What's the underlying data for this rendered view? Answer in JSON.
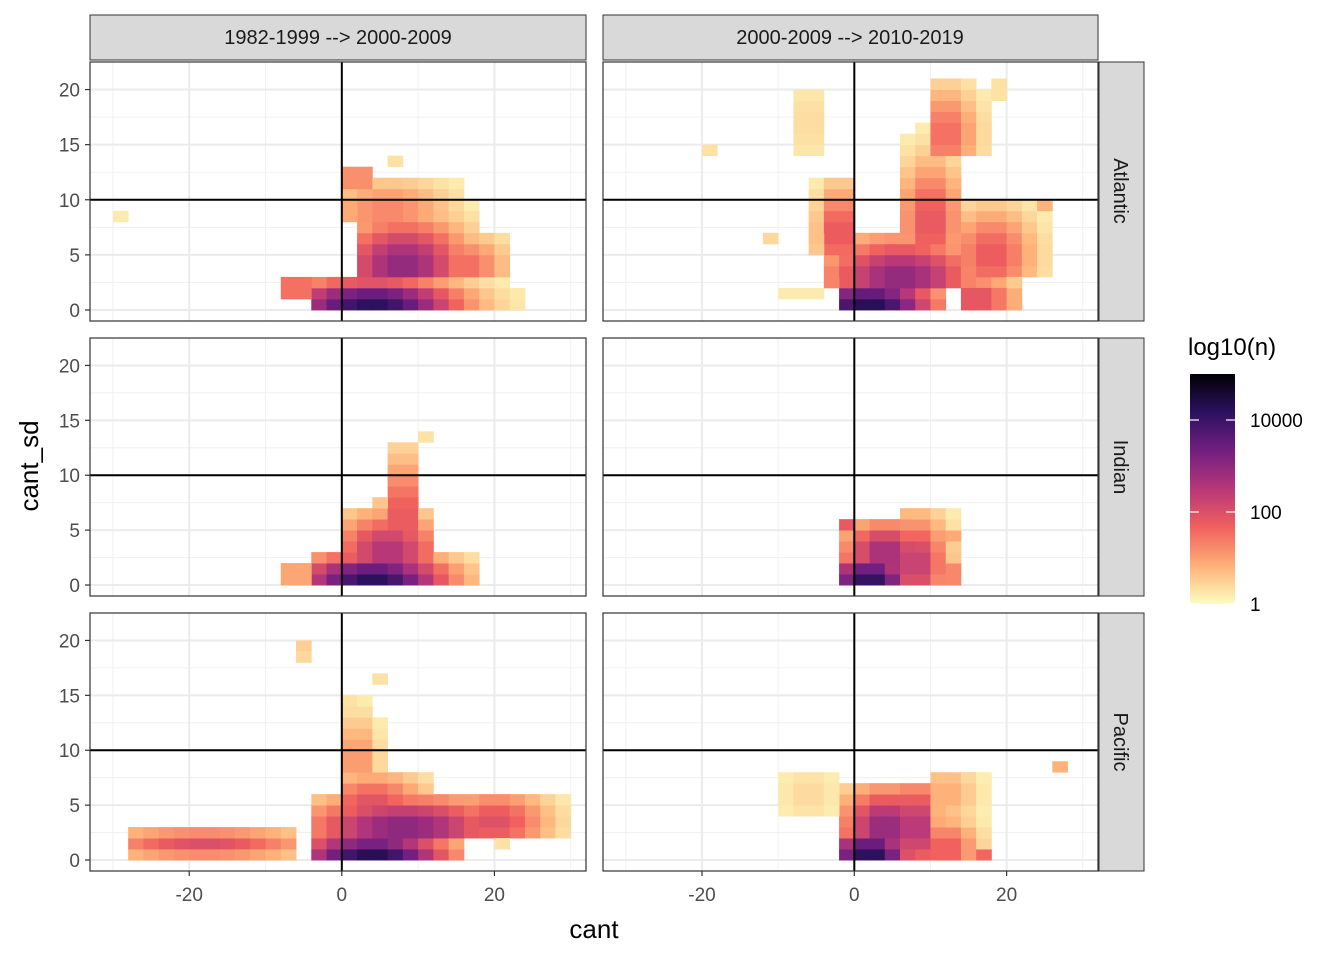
{
  "chart_data": {
    "type": "heatmap",
    "xlabel": "cant",
    "ylabel": "cant_sd",
    "xlim": [
      -33,
      32
    ],
    "ylim": [
      -1,
      22.5
    ],
    "x_ticks": [
      -20,
      0,
      20
    ],
    "x_tick_labels": [
      "-20",
      "0",
      "20"
    ],
    "y_ticks": [
      0,
      5,
      10,
      15,
      20
    ],
    "y_tick_labels": [
      "0",
      "5",
      "10",
      "15",
      "20"
    ],
    "reference_lines": {
      "vertical_x": 0,
      "horizontal_y": 10
    },
    "bin_size": [
      2,
      1
    ],
    "columns": [
      {
        "id": "p1",
        "label": "1982-1999 --> 2000-2009"
      },
      {
        "id": "p2",
        "label": "2000-2009 --> 2010-2019"
      }
    ],
    "rows": [
      {
        "id": "atl",
        "label": "Atlantic"
      },
      {
        "id": "ind",
        "label": "Indian"
      },
      {
        "id": "pac",
        "label": "Pacific"
      }
    ],
    "legend": {
      "title": "log10(n)",
      "scale": "log10",
      "range": [
        1,
        100000
      ],
      "breaks": [
        1,
        100,
        10000
      ],
      "break_labels": [
        "1",
        "100",
        "10000"
      ],
      "colors": [
        "#fcfdbf",
        "#feb078",
        "#f1605d",
        "#b73779",
        "#721f81",
        "#2c115f",
        "#000004"
      ]
    },
    "panels": [
      {
        "col": "p1",
        "row": "atl",
        "blobs": [
          {
            "x0": -4,
            "x1": 24,
            "y0": 0,
            "y1": 3,
            "cx": 4,
            "cy": 0.5,
            "peak": 4.2,
            "sx": 8,
            "sy": 1.6
          },
          {
            "x0": 2,
            "x1": 18,
            "y0": 3,
            "y1": 10,
            "cx": 8,
            "cy": 4,
            "peak": 3.0,
            "sx": 6,
            "sy": 3
          },
          {
            "x0": 0,
            "x1": 16,
            "y0": 8,
            "y1": 12,
            "cx": 6,
            "cy": 9,
            "peak": 1.3,
            "sx": 6,
            "sy": 2
          },
          {
            "x0": 0,
            "x1": 4,
            "y0": 11,
            "y1": 13,
            "cx": 2,
            "cy": 12,
            "peak": 1.4,
            "sx": 3,
            "sy": 1
          },
          {
            "x0": 14,
            "x1": 22,
            "y0": 3,
            "y1": 7,
            "cx": 16,
            "cy": 4,
            "peak": 1.6,
            "sx": 4,
            "sy": 2
          },
          {
            "x0": -8,
            "x1": -4,
            "y0": 1,
            "y1": 3,
            "cx": -6,
            "cy": 2,
            "peak": 1.8,
            "sx": 3,
            "sy": 1
          }
        ],
        "cells": [
          [
            -30,
            8,
            0.2
          ],
          [
            6,
            13,
            0.3
          ],
          [
            10,
            10,
            0.3
          ],
          [
            14,
            10,
            0.3
          ]
        ]
      },
      {
        "col": "p1",
        "row": "ind",
        "blobs": [
          {
            "x0": -4,
            "x1": 18,
            "y0": 0,
            "y1": 3,
            "cx": 4,
            "cy": 0.5,
            "peak": 4.2,
            "sx": 7,
            "sy": 1.6
          },
          {
            "x0": 0,
            "x1": 12,
            "y0": 2,
            "y1": 7,
            "cx": 6,
            "cy": 3,
            "peak": 2.6,
            "sx": 5,
            "sy": 2.5
          },
          {
            "x0": 6,
            "x1": 10,
            "y0": 5,
            "y1": 13,
            "cx": 8,
            "cy": 6,
            "peak": 2.0,
            "sx": 2,
            "sy": 4
          },
          {
            "x0": -8,
            "x1": -4,
            "y0": 0,
            "y1": 2,
            "cx": -6,
            "cy": 1,
            "peak": 1.2,
            "sx": 2,
            "sy": 1
          }
        ],
        "cells": [
          [
            10,
            13,
            0.3
          ],
          [
            -8,
            1,
            0.4
          ],
          [
            2,
            6,
            0.5
          ],
          [
            4,
            7,
            0.6
          ]
        ]
      },
      {
        "col": "p1",
        "row": "pac",
        "blobs": [
          {
            "x0": -4,
            "x1": 16,
            "y0": 0,
            "y1": 3,
            "cx": 4,
            "cy": 0.4,
            "peak": 4.3,
            "sx": 7,
            "sy": 1.5
          },
          {
            "x0": -4,
            "x1": 28,
            "y0": 2,
            "y1": 6,
            "cx": 8,
            "cy": 3,
            "peak": 3.1,
            "sx": 9,
            "sy": 2
          },
          {
            "x0": 0,
            "x1": 12,
            "y0": 5,
            "y1": 8,
            "cx": 4,
            "cy": 5,
            "peak": 2.0,
            "sx": 5,
            "sy": 2
          },
          {
            "x0": 0,
            "x1": 6,
            "y0": 8,
            "y1": 15,
            "cx": 2,
            "cy": 9,
            "peak": 1.2,
            "sx": 2,
            "sy": 3
          },
          {
            "x0": 14,
            "x1": 30,
            "y0": 2,
            "y1": 6,
            "cx": 20,
            "cy": 3.5,
            "peak": 2.0,
            "sx": 5,
            "sy": 2
          },
          {
            "x0": -28,
            "x1": -6,
            "y0": 0,
            "y1": 3,
            "cx": -18,
            "cy": 1.5,
            "peak": 2.0,
            "sx": 10,
            "sy": 1
          }
        ],
        "cells": [
          [
            -6,
            19,
            0.5
          ],
          [
            -6,
            18,
            0.4
          ],
          [
            4,
            16,
            0.3
          ],
          [
            0,
            14,
            0.3
          ],
          [
            18,
            4,
            0.4
          ],
          [
            20,
            1,
            0.3
          ]
        ]
      },
      {
        "col": "p2",
        "row": "atl",
        "blobs": [
          {
            "x0": -2,
            "x1": 12,
            "y0": 0,
            "y1": 3,
            "cx": 2,
            "cy": 0.5,
            "peak": 4.3,
            "sx": 6,
            "sy": 1.6
          },
          {
            "x0": -4,
            "x1": 20,
            "y0": 2,
            "y1": 7,
            "cx": 6,
            "cy": 3,
            "peak": 3.0,
            "sx": 7,
            "sy": 2.5
          },
          {
            "x0": -6,
            "x1": 0,
            "y0": 5,
            "y1": 12,
            "cx": -2,
            "cy": 7,
            "peak": 2.0,
            "sx": 2,
            "sy": 3
          },
          {
            "x0": 6,
            "x1": 14,
            "y0": 6,
            "y1": 17,
            "cx": 10,
            "cy": 8,
            "peak": 1.9,
            "sx": 3,
            "sy": 4
          },
          {
            "x0": 10,
            "x1": 18,
            "y0": 14,
            "y1": 21,
            "cx": 12,
            "cy": 16,
            "peak": 1.6,
            "sx": 3,
            "sy": 3
          },
          {
            "x0": -8,
            "x1": -4,
            "y0": 14,
            "y1": 20,
            "cx": -6,
            "cy": 17,
            "peak": 0.4,
            "sx": 2,
            "sy": 3
          },
          {
            "x0": 14,
            "x1": 26,
            "y0": 3,
            "y1": 10,
            "cx": 18,
            "cy": 5,
            "peak": 1.8,
            "sx": 4,
            "sy": 3
          },
          {
            "x0": 14,
            "x1": 22,
            "y0": 0,
            "y1": 3,
            "cx": 16,
            "cy": 1,
            "peak": 2.0,
            "sx": 4,
            "sy": 1.5
          }
        ],
        "cells": [
          [
            -20,
            14,
            0.3
          ],
          [
            -12,
            6,
            0.4
          ],
          [
            -10,
            1,
            0.2
          ],
          [
            -8,
            1,
            0.2
          ],
          [
            -6,
            1,
            0.2
          ],
          [
            18,
            19,
            0.3
          ],
          [
            18,
            20,
            0.3
          ],
          [
            24,
            9,
            0.8
          ]
        ]
      },
      {
        "col": "p2",
        "row": "ind",
        "blobs": [
          {
            "x0": -2,
            "x1": 10,
            "y0": 0,
            "y1": 3,
            "cx": 2,
            "cy": 0.5,
            "peak": 4.2,
            "sx": 4,
            "sy": 1.6
          },
          {
            "x0": -2,
            "x1": 10,
            "y0": 2,
            "y1": 6,
            "cx": 4,
            "cy": 3,
            "peak": 2.8,
            "sx": 4,
            "sy": 2
          },
          {
            "x0": 6,
            "x1": 14,
            "y0": 0,
            "y1": 7,
            "cx": 8,
            "cy": 2,
            "peak": 2.4,
            "sx": 3,
            "sy": 3
          },
          {
            "x0": 10,
            "x1": 14,
            "y0": 0,
            "y1": 2,
            "cx": 12,
            "cy": 1,
            "peak": 1.6,
            "sx": 2,
            "sy": 1
          }
        ],
        "cells": [
          [
            -2,
            0,
            3.2
          ],
          [
            12,
            4,
            0.9
          ],
          [
            -2,
            5,
            1.8
          ]
        ]
      },
      {
        "col": "p2",
        "row": "pac",
        "blobs": [
          {
            "x0": -2,
            "x1": 10,
            "y0": 0,
            "y1": 3,
            "cx": 2,
            "cy": 0.5,
            "peak": 4.3,
            "sx": 4,
            "sy": 1.6
          },
          {
            "x0": -2,
            "x1": 10,
            "y0": 2,
            "y1": 7,
            "cx": 4,
            "cy": 3,
            "peak": 3.0,
            "sx": 4,
            "sy": 2.5
          },
          {
            "x0": 6,
            "x1": 12,
            "y0": 0,
            "y1": 7,
            "cx": 8,
            "cy": 3,
            "peak": 2.8,
            "sx": 2,
            "sy": 3
          },
          {
            "x0": 10,
            "x1": 18,
            "y0": 0,
            "y1": 4,
            "cx": 12,
            "cy": 1,
            "peak": 1.8,
            "sx": 3,
            "sy": 2
          },
          {
            "x0": 10,
            "x1": 18,
            "y0": 4,
            "y1": 8,
            "cx": 12,
            "cy": 6,
            "peak": 0.9,
            "sx": 3,
            "sy": 2
          },
          {
            "x0": -10,
            "x1": -2,
            "y0": 4,
            "y1": 8,
            "cx": -6,
            "cy": 6,
            "peak": 0.4,
            "sx": 3,
            "sy": 2
          }
        ],
        "cells": [
          [
            26,
            8,
            0.8
          ],
          [
            -2,
            0,
            1.8
          ],
          [
            16,
            0,
            1.6
          ]
        ]
      }
    ]
  }
}
